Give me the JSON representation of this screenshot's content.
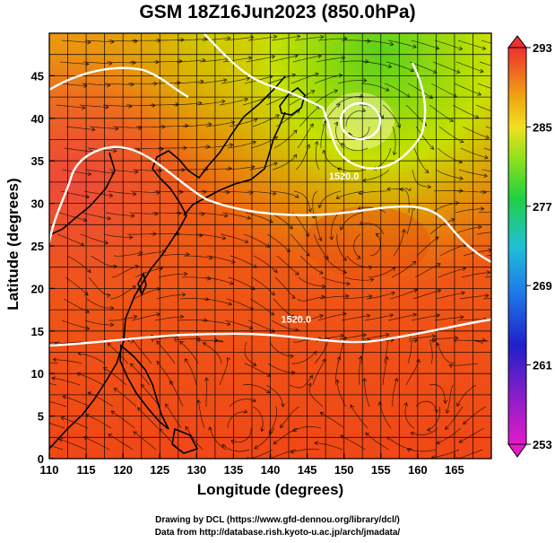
{
  "title": "GSM 18Z16Jun2023 (850.0hPa)",
  "xlabel": "Longitude (degrees)",
  "ylabel": "Latitude  (degrees)",
  "credits": [
    "Drawing by DCL (https://www.gfd-dennou.org/library/dcl/)",
    "Data from http://database.rish.kyoto-u.ac.jp/arch/jmadata/"
  ],
  "map": {
    "lon_range": [
      110,
      170
    ],
    "lat_range": [
      0,
      50
    ],
    "lon_ticks": [
      110,
      115,
      120,
      125,
      130,
      135,
      140,
      145,
      150,
      155,
      160,
      165
    ],
    "lat_ticks": [
      0,
      5,
      10,
      15,
      20,
      25,
      30,
      35,
      40,
      45
    ],
    "grid_step_deg": 2.5,
    "contour_labels": [
      {
        "text": "1520.0",
        "lon": 150.0,
        "lat": 32.8
      },
      {
        "text": "1520.0",
        "lon": 143.5,
        "lat": 16.0
      }
    ]
  },
  "colorbar": {
    "min": 253,
    "max": 293,
    "ticks": [
      253,
      261,
      269,
      277,
      285,
      293
    ]
  }
}
